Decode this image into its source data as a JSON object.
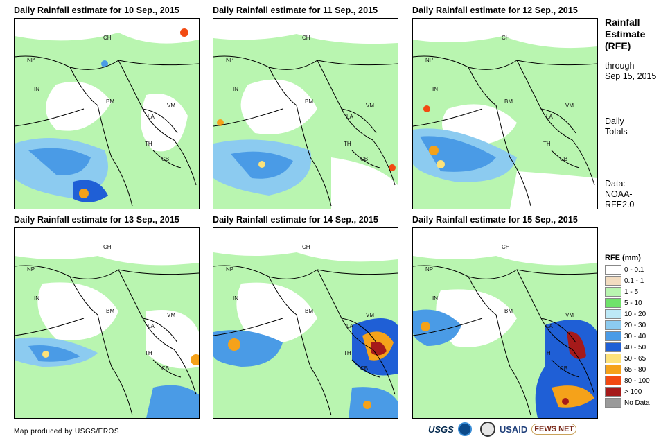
{
  "panels": [
    {
      "title": "Daily Rainfall estimate for 10 Sep., 2015"
    },
    {
      "title": "Daily Rainfall estimate for 11 Sep., 2015"
    },
    {
      "title": "Daily Rainfall estimate for 12 Sep., 2015"
    },
    {
      "title": "Daily Rainfall estimate for 13 Sep., 2015"
    },
    {
      "title": "Daily Rainfall estimate for 14 Sep., 2015"
    },
    {
      "title": "Daily Rainfall estimate for 15 Sep., 2015"
    }
  ],
  "country_labels": {
    "ch": "CH",
    "np": "NP",
    "in": "IN",
    "bm": "BM",
    "la": "LA",
    "vm": "VM",
    "th": "TH",
    "cb": "CB"
  },
  "sidebar": {
    "title_line1": "Rainfall",
    "title_line2": "Estimate",
    "title_line3": "(RFE)",
    "through_line1": "through",
    "through_line2": "Sep 15, 2015",
    "daily_line1": "Daily",
    "daily_line2": "Totals",
    "data_line1": "Data:",
    "data_line2": "NOAA-",
    "data_line3": "RFE2.0"
  },
  "legend": {
    "title": "RFE (mm)",
    "items": [
      {
        "label": "0 - 0.1",
        "color": "#ffffff"
      },
      {
        "label": "0.1 - 1",
        "color": "#f2dcc0"
      },
      {
        "label": "1 - 5",
        "color": "#b9f5b0"
      },
      {
        "label": "5 - 10",
        "color": "#6fe26a"
      },
      {
        "label": "10 - 20",
        "color": "#bde9f7"
      },
      {
        "label": "20 - 30",
        "color": "#8ccbf0"
      },
      {
        "label": "30 - 40",
        "color": "#4a9be6"
      },
      {
        "label": "40 - 50",
        "color": "#1f5fd6"
      },
      {
        "label": "50 - 65",
        "color": "#fde27a"
      },
      {
        "label": "65 - 80",
        "color": "#f5a21a"
      },
      {
        "label": "80 - 100",
        "color": "#f24a12"
      },
      {
        "label": "> 100",
        "color": "#a51a1a"
      },
      {
        "label": "No Data",
        "color": "#9a9a9a"
      }
    ]
  },
  "credit": "Map produced by USGS/EROS",
  "logos": {
    "usgs": "USGS",
    "usaid": "USAID",
    "fews": "FEWS NET"
  }
}
